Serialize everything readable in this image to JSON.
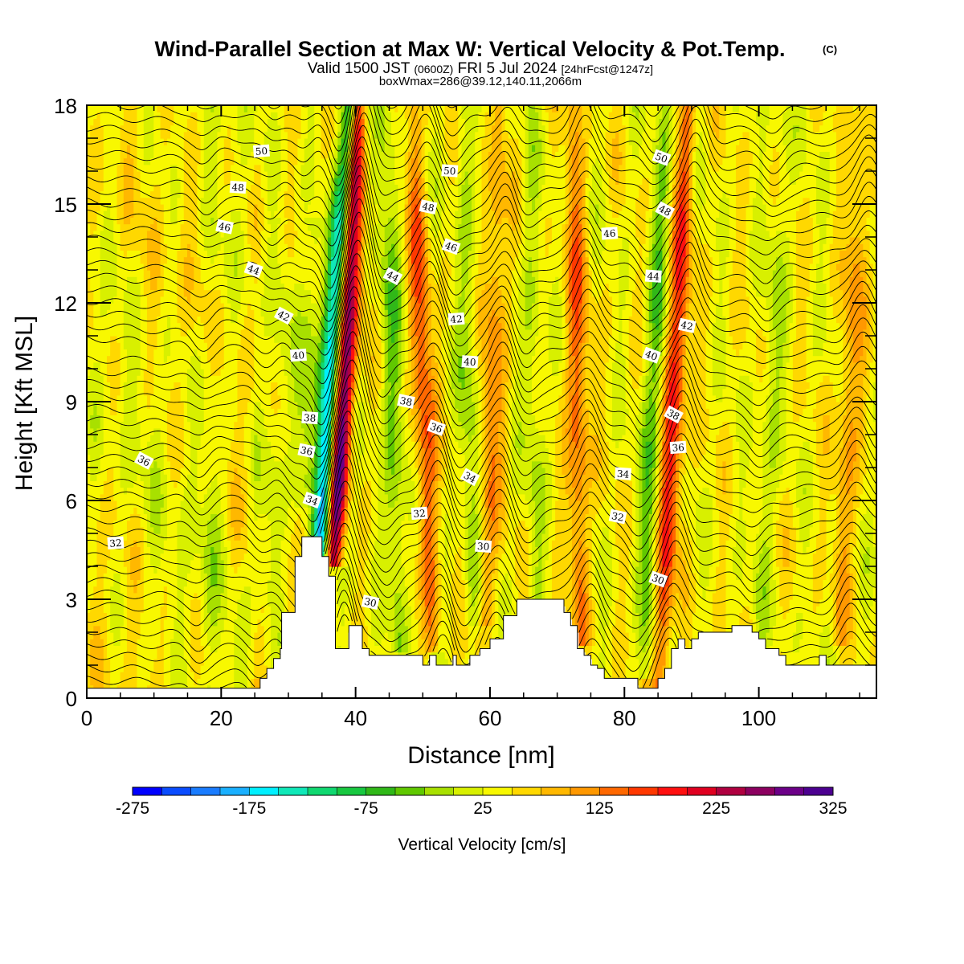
{
  "chart_data": {
    "type": "heatmap",
    "title": "Wind-Parallel Section at Max W: Vertical Velocity & Pot.Temp.",
    "title_mark": "(C)",
    "subtitle_parts": [
      "Valid 1500 JST ",
      "(0600Z)",
      " FRI 5 Jul 2024 ",
      "[24hrFcst@1247z]"
    ],
    "subtitle2": "boxWmax=286@39.12,140.11,2066m",
    "xlabel": "Distance [nm]",
    "ylabel": "Height [Kft MSL]",
    "xlim": [
      0,
      117.5
    ],
    "ylim": [
      0,
      18
    ],
    "x_ticks": [
      "0",
      "20",
      "40",
      "60",
      "80",
      "100"
    ],
    "x_tick_values": [
      0,
      20,
      40,
      60,
      80,
      100
    ],
    "y_ticks": [
      "0",
      "3",
      "6",
      "9",
      "12",
      "15",
      "18"
    ],
    "y_tick_values": [
      0,
      3,
      6,
      9,
      12,
      15,
      18
    ],
    "colorbar": {
      "title": "Vertical Velocity [cm/s]",
      "labels": [
        "-275",
        "-175",
        "-75",
        "25",
        "125",
        "225",
        "325"
      ],
      "min": -275,
      "max": 325,
      "step": 25,
      "colors": [
        "#0000ff",
        "#0a4cff",
        "#1a7cff",
        "#1ab0ff",
        "#00f0ff",
        "#10e8b8",
        "#10d870",
        "#18c840",
        "#30b818",
        "#60c800",
        "#a8e000",
        "#d8f000",
        "#f8f800",
        "#ffd800",
        "#ffb800",
        "#ff9800",
        "#ff6800",
        "#ff3800",
        "#ff1010",
        "#e00020",
        "#b00040",
        "#8c0060",
        "#6c0088",
        "#4c0090"
      ]
    },
    "background_w": 40,
    "updraft_bands": [
      {
        "x_bottom": 36.8,
        "x_top": 40.3,
        "z_bottom": 4.3,
        "z_top": 18,
        "w_max": 290
      },
      {
        "x_bottom": 51.5,
        "x_top": 48.5,
        "z_bottom": 1.6,
        "z_top": 18,
        "w_max": 110
      },
      {
        "x_bottom": 59.5,
        "x_top": 61.5,
        "z_bottom": 2.5,
        "z_top": 18,
        "w_max": 80
      },
      {
        "x_bottom": 73.5,
        "x_top": 72.5,
        "z_bottom": 2.0,
        "z_top": 18,
        "w_max": 100
      },
      {
        "x_bottom": 85.3,
        "x_top": 89.5,
        "z_bottom": 0.4,
        "z_top": 18,
        "w_max": 150
      },
      {
        "x_bottom": 112.0,
        "x_top": 115.5,
        "z_bottom": 2.0,
        "z_top": 18,
        "w_max": 70
      }
    ],
    "downdraft_bands": [
      {
        "x_bottom": 34.6,
        "x_top": 39.2,
        "z_bottom": 4.3,
        "z_top": 18,
        "w_min": -260
      },
      {
        "x_bottom": 32.0,
        "x_top": 34.0,
        "z_bottom": 6.0,
        "z_top": 14,
        "w_min": -60
      },
      {
        "x_bottom": 46.5,
        "x_top": 44.5,
        "z_bottom": 1.8,
        "z_top": 18,
        "w_min": -70
      },
      {
        "x_bottom": 57.5,
        "x_top": 56.0,
        "z_bottom": 2.5,
        "z_top": 18,
        "w_min": -50
      },
      {
        "x_bottom": 67.0,
        "x_top": 66.0,
        "z_bottom": 3.0,
        "z_top": 18,
        "w_min": -40
      },
      {
        "x_bottom": 83.0,
        "x_top": 86.0,
        "z_bottom": 1.0,
        "z_top": 18,
        "w_min": -80
      },
      {
        "x_bottom": 100.0,
        "x_top": 104.0,
        "z_bottom": 2.0,
        "z_top": 18,
        "w_min": -40
      },
      {
        "x_bottom": 18.0,
        "x_top": 19.0,
        "z_bottom": 2.0,
        "z_top": 14,
        "w_min": -30
      },
      {
        "x_bottom": 27.0,
        "x_top": 29.0,
        "z_bottom": 3.0,
        "z_top": 14,
        "w_min": -30
      }
    ],
    "terrain": {
      "x": [
        0,
        25.8,
        25.8,
        26.8,
        26.8,
        27.8,
        27.8,
        28.8,
        28.8,
        29.0,
        29.0,
        31.0,
        31.0,
        32.0,
        32.0,
        33.0,
        33.0,
        35.0,
        35.0,
        36.0,
        36.0,
        37.0,
        37.0,
        38.0,
        38.0,
        39.0,
        39.0,
        41.0,
        41.0,
        42.0,
        42.0,
        43.0,
        43.0,
        50.0,
        50.0,
        51.0,
        51.0,
        52.0,
        52.0,
        54.5,
        54.5,
        55.0,
        55.0,
        57.0,
        57.0,
        58.5,
        58.5,
        60.0,
        60.0,
        62.0,
        62.0,
        64.0,
        64.0,
        65.0,
        65.0,
        71.0,
        71.0,
        72.0,
        72.0,
        73.0,
        73.0,
        74.0,
        74.0,
        75.0,
        75.0,
        76.0,
        76.0,
        77.0,
        77.0,
        78.0,
        78.0,
        79.0,
        79.0,
        82.0,
        82.0,
        83.0,
        83.0,
        85.0,
        85.0,
        86.0,
        86.0,
        87.0,
        87.0,
        88.0,
        88.0,
        89.0,
        89.0,
        90.0,
        90.0,
        91.0,
        91.0,
        92.0,
        92.0,
        96.0,
        96.0,
        98.0,
        98.0,
        99.0,
        99.0,
        100.0,
        100.0,
        101.0,
        101.0,
        103.0,
        103.0,
        104.0,
        104.0,
        109.0,
        109.0,
        110.0,
        110.0,
        111.0,
        111.0,
        113.0,
        113.0,
        117.5
      ],
      "z": [
        0.3,
        0.3,
        0.6,
        0.6,
        0.9,
        0.9,
        1.2,
        1.2,
        1.5,
        1.5,
        2.6,
        2.6,
        4.3,
        4.3,
        4.9,
        4.9,
        4.9,
        4.9,
        4.3,
        4.3,
        3.7,
        3.7,
        1.5,
        1.5,
        1.5,
        1.5,
        2.2,
        2.2,
        1.5,
        1.5,
        1.3,
        1.3,
        1.3,
        1.3,
        1.0,
        1.0,
        1.3,
        1.3,
        1.0,
        1.0,
        1.3,
        1.3,
        1.0,
        1.0,
        1.3,
        1.3,
        1.5,
        1.5,
        1.8,
        1.8,
        2.5,
        2.5,
        3.0,
        3.0,
        3.0,
        3.0,
        2.6,
        2.6,
        2.2,
        2.2,
        1.5,
        1.5,
        1.3,
        1.3,
        1.0,
        1.0,
        0.9,
        0.9,
        0.6,
        0.6,
        0.6,
        0.6,
        0.6,
        0.6,
        0.3,
        0.3,
        0.3,
        0.3,
        0.6,
        0.6,
        0.9,
        0.9,
        1.5,
        1.5,
        1.8,
        1.8,
        1.5,
        1.5,
        1.8,
        1.8,
        2.0,
        2.0,
        2.0,
        2.0,
        2.2,
        2.2,
        2.2,
        2.2,
        2.0,
        2.0,
        1.8,
        1.8,
        1.5,
        1.5,
        1.3,
        1.3,
        1.0,
        1.0,
        1.3,
        1.3,
        1.0,
        1.0,
        1.0,
        1.0,
        1.0,
        1.0
      ]
    },
    "theta_labels": [
      {
        "text": "50",
        "x": 26.0,
        "z": 16.6
      },
      {
        "text": "48",
        "x": 22.5,
        "z": 15.5
      },
      {
        "text": "46",
        "x": 20.5,
        "z": 14.3
      },
      {
        "text": "44",
        "x": 24.8,
        "z": 13.0
      },
      {
        "text": "42",
        "x": 29.3,
        "z": 11.6
      },
      {
        "text": "40",
        "x": 31.5,
        "z": 10.4
      },
      {
        "text": "38",
        "x": 33.2,
        "z": 8.5
      },
      {
        "text": "36",
        "x": 32.7,
        "z": 7.5
      },
      {
        "text": "34",
        "x": 33.5,
        "z": 6.0
      },
      {
        "text": "36",
        "x": 8.5,
        "z": 7.2
      },
      {
        "text": "32",
        "x": 4.3,
        "z": 4.7
      },
      {
        "text": "50",
        "x": 54.0,
        "z": 16.0
      },
      {
        "text": "48",
        "x": 50.8,
        "z": 14.9
      },
      {
        "text": "46",
        "x": 54.2,
        "z": 13.7
      },
      {
        "text": "44",
        "x": 45.5,
        "z": 12.8
      },
      {
        "text": "42",
        "x": 55.0,
        "z": 11.5
      },
      {
        "text": "40",
        "x": 57.0,
        "z": 10.2
      },
      {
        "text": "38",
        "x": 47.5,
        "z": 9.0
      },
      {
        "text": "36",
        "x": 52.0,
        "z": 8.2
      },
      {
        "text": "34",
        "x": 57.0,
        "z": 6.7
      },
      {
        "text": "32",
        "x": 49.5,
        "z": 5.6
      },
      {
        "text": "30",
        "x": 59.0,
        "z": 4.6
      },
      {
        "text": "30",
        "x": 42.2,
        "z": 2.9
      },
      {
        "text": "50",
        "x": 85.5,
        "z": 16.4
      },
      {
        "text": "48",
        "x": 86.0,
        "z": 14.8
      },
      {
        "text": "46",
        "x": 77.8,
        "z": 14.1
      },
      {
        "text": "44",
        "x": 84.3,
        "z": 12.8
      },
      {
        "text": "42",
        "x": 89.3,
        "z": 11.3
      },
      {
        "text": "40",
        "x": 84.0,
        "z": 10.4
      },
      {
        "text": "38",
        "x": 87.3,
        "z": 8.6
      },
      {
        "text": "36",
        "x": 88.0,
        "z": 7.6
      },
      {
        "text": "34",
        "x": 79.8,
        "z": 6.8
      },
      {
        "text": "32",
        "x": 79.0,
        "z": 5.5
      },
      {
        "text": "30",
        "x": 85.0,
        "z": 3.6
      }
    ]
  }
}
